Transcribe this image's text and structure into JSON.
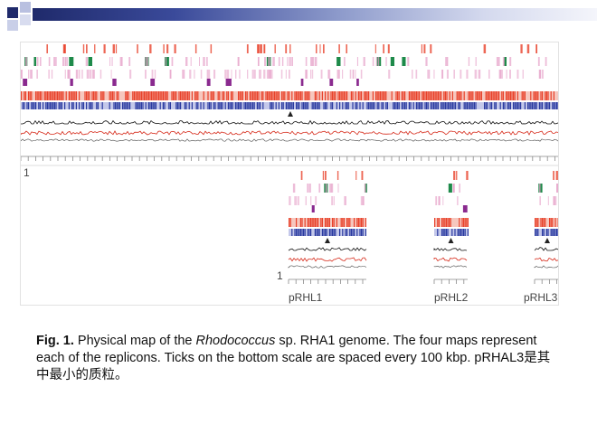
{
  "colors": {
    "header_dark": "#1f2a6b",
    "red_track": "#e8412a",
    "blue_track": "#2a3aa0",
    "green_marks": "#1e8a4a",
    "purple_marks": "#8a2a8f",
    "pink_marks": "#e6a0c8",
    "gc_black": "#111111",
    "gc_red": "#d62a1a"
  },
  "figure": {
    "chromosome_start_label": "1",
    "plasmid_start_label": "1",
    "replicons": [
      {
        "name": "pRHL1"
      },
      {
        "name": "pRHL2"
      },
      {
        "name": "pRHL3"
      }
    ]
  },
  "caption": {
    "fig_label": "Fig. 1.",
    "text_before_italic": " Physical map of the ",
    "italic": "Rhodococcus",
    "text_after_italic": " sp. RHA1 genome. The four maps represent each of the replicons. Ticks on the bottom scale are spaced every 100 kbp. ",
    "highlight": "pRHAL3是其中最小的质粒。"
  }
}
